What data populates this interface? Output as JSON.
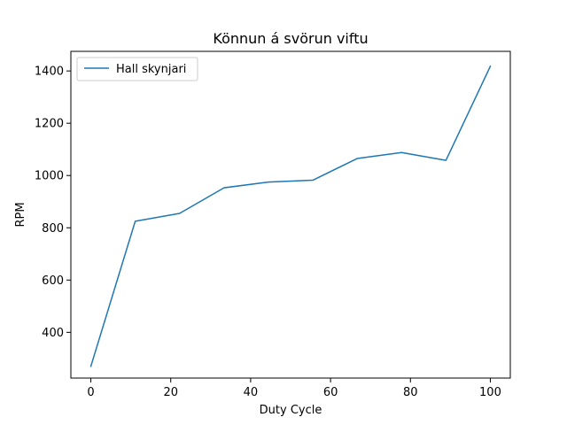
{
  "chart_data": {
    "type": "line",
    "title": "Könnun á svörun viftu",
    "xlabel": "Duty Cycle",
    "ylabel": "RPM",
    "xlim": [
      -5,
      105
    ],
    "ylim": [
      225,
      1475
    ],
    "xticks": [
      0,
      20,
      40,
      60,
      80,
      100
    ],
    "yticks": [
      400,
      600,
      800,
      1000,
      1200,
      1400
    ],
    "grid": false,
    "legend_position": "top-left",
    "series": [
      {
        "name": "Hall skynjari",
        "color": "#1f77b4",
        "x": [
          0,
          11.11,
          22.22,
          33.33,
          44.44,
          55.56,
          66.67,
          77.78,
          88.89,
          100
        ],
        "y": [
          270,
          825,
          855,
          953,
          975,
          982,
          1065,
          1088,
          1058,
          1418
        ]
      }
    ]
  }
}
